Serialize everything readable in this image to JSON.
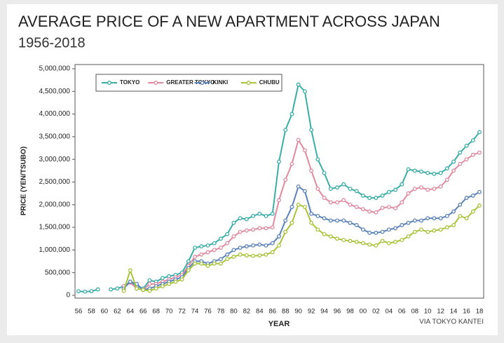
{
  "chart_data": {
    "type": "line",
    "title": "AVERAGE PRICE OF A NEW APARTMENT ACROSS JAPAN",
    "subtitle": "1956-2018",
    "y_label": "PRICE (YEN/TSUBO)",
    "x_label": "YEAR",
    "source": "VIA TOKYO KANTEI",
    "categories": [
      "56",
      null,
      "58",
      null,
      "60",
      null,
      "62",
      null,
      "64",
      null,
      "66",
      null,
      "68",
      null,
      "70",
      null,
      "72",
      null,
      "74",
      null,
      "76",
      null,
      "78",
      null,
      "80",
      null,
      "82",
      null,
      "84",
      null,
      "86",
      null,
      "88",
      null,
      "90",
      null,
      "92",
      null,
      "94",
      null,
      "96",
      null,
      "98",
      null,
      "00",
      null,
      "02",
      null,
      "04",
      null,
      "06",
      null,
      "08",
      null,
      "10",
      null,
      "12",
      null,
      "14",
      null,
      "16",
      null,
      "18"
    ],
    "ylim": [
      0,
      5000000
    ],
    "yticks": [
      0,
      {
        "value": 500000,
        "label": "500,000"
      },
      {
        "value": 1000000,
        "label": "1,000,000"
      },
      {
        "value": 1500000,
        "label": "1,500,000"
      },
      {
        "value": 2000000,
        "label": "2,000,000"
      },
      {
        "value": 2500000,
        "label": "2,500,000"
      },
      {
        "value": 3000000,
        "label": "3,000,000"
      },
      {
        "value": 3500000,
        "label": "3,500,000"
      },
      {
        "value": 4000000,
        "label": "4,000,000"
      },
      {
        "value": 4500000,
        "label": "4,500,000"
      },
      {
        "value": 5000000,
        "label": "5,000,000"
      }
    ],
    "legend": "top-left",
    "series": [
      {
        "name": "TOKYO",
        "color": "#3aada8",
        "values": [
          90000,
          80000,
          90000,
          130000,
          null,
          130000,
          150000,
          200000,
          300000,
          200000,
          150000,
          330000,
          300000,
          380000,
          420000,
          450000,
          500000,
          750000,
          1050000,
          1080000,
          1100000,
          1150000,
          1250000,
          1350000,
          1600000,
          1700000,
          1680000,
          1750000,
          1800000,
          1750000,
          1800000,
          2950000,
          3650000,
          4000000,
          4650000,
          4500000,
          3650000,
          3000000,
          2700000,
          2350000,
          2380000,
          2450000,
          2350000,
          2300000,
          2200000,
          2150000,
          2150000,
          2200000,
          2280000,
          2330000,
          2450000,
          2780000,
          2750000,
          2730000,
          2700000,
          2680000,
          2700000,
          2800000,
          2950000,
          3150000,
          3300000,
          3420000,
          3600000
        ]
      },
      {
        "name": "GREATER TOKYO",
        "color": "#e08aa0",
        "values": [
          null,
          null,
          null,
          null,
          null,
          null,
          null,
          200000,
          280000,
          150000,
          120000,
          250000,
          250000,
          300000,
          350000,
          400000,
          450000,
          650000,
          850000,
          900000,
          950000,
          1000000,
          1050000,
          1150000,
          1300000,
          1400000,
          1430000,
          1450000,
          1480000,
          1480000,
          1500000,
          2100000,
          2550000,
          2900000,
          3430000,
          3200000,
          2750000,
          2350000,
          2150000,
          2050000,
          2050000,
          2100000,
          2000000,
          1950000,
          1900000,
          1850000,
          1830000,
          1930000,
          1950000,
          1920000,
          2050000,
          2250000,
          2350000,
          2380000,
          2330000,
          2350000,
          2400000,
          2550000,
          2750000,
          2900000,
          3000000,
          3100000,
          3150000
        ]
      },
      {
        "name": "KINKI",
        "color": "#5b82b8",
        "values": [
          null,
          null,
          null,
          null,
          null,
          null,
          null,
          150000,
          300000,
          250000,
          120000,
          150000,
          200000,
          250000,
          300000,
          350000,
          400000,
          600000,
          750000,
          750000,
          700000,
          750000,
          800000,
          900000,
          1000000,
          1050000,
          1080000,
          1100000,
          1120000,
          1100000,
          1150000,
          1300000,
          1650000,
          1950000,
          2400000,
          2300000,
          1800000,
          1750000,
          1700000,
          1650000,
          1650000,
          1650000,
          1600000,
          1550000,
          1450000,
          1380000,
          1380000,
          1400000,
          1450000,
          1480000,
          1550000,
          1600000,
          1650000,
          1650000,
          1700000,
          1700000,
          1700000,
          1750000,
          1850000,
          2000000,
          2150000,
          2200000,
          2280000
        ]
      },
      {
        "name": "CHUBU",
        "color": "#a8c43a",
        "values": [
          null,
          null,
          null,
          null,
          null,
          null,
          null,
          100000,
          550000,
          150000,
          120000,
          100000,
          150000,
          200000,
          250000,
          300000,
          350000,
          550000,
          700000,
          700000,
          650000,
          700000,
          700000,
          800000,
          850000,
          900000,
          880000,
          870000,
          880000,
          900000,
          950000,
          1100000,
          1400000,
          1600000,
          2000000,
          1950000,
          1600000,
          1450000,
          1350000,
          1300000,
          1250000,
          1220000,
          1200000,
          1180000,
          1150000,
          1120000,
          1100000,
          1200000,
          1150000,
          1180000,
          1220000,
          1300000,
          1400000,
          1450000,
          1400000,
          1430000,
          1450000,
          1500000,
          1550000,
          1750000,
          1700000,
          1850000,
          1980000
        ]
      }
    ]
  }
}
